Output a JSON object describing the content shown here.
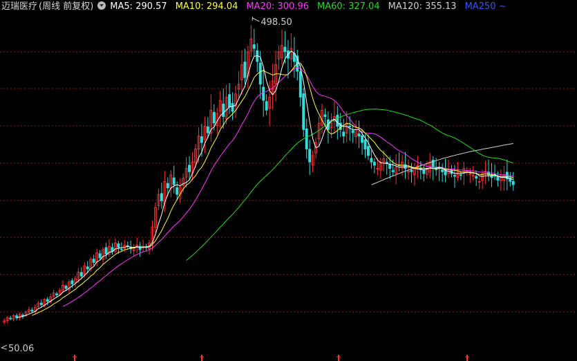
{
  "header": {
    "stock_name": "迈瑞医疗",
    "mode": "(周线 前复权)",
    "ma": [
      {
        "label": "MA5: 290.57",
        "color": "#ffffff"
      },
      {
        "label": "MA10: 294.04",
        "color": "#ffff33"
      },
      {
        "label": "MA20: 300.96",
        "color": "#ff33ff"
      },
      {
        "label": "MA60: 327.04",
        "color": "#22dd22"
      },
      {
        "label": "MA120: 355.13",
        "color": "#d0d0d0"
      },
      {
        "label": "MA250 ~",
        "color": "#3355ff"
      }
    ]
  },
  "chart_data": {
    "type": "candlestick",
    "title": "迈瑞医疗(周线 前复权)",
    "high_label": "498.50",
    "low_label": "50.06",
    "ylim": [
      40,
      520
    ],
    "grid": "horizontal dashed red",
    "up_color": "#ff3333",
    "down_color": "#33dddd",
    "ma_colors": {
      "ma5": "#ffffff",
      "ma10": "#ffff33",
      "ma20": "#ff33ff",
      "ma60": "#22dd22",
      "ma120": "#d0d0d0"
    },
    "year_markers": 4,
    "close_series": [
      55,
      60,
      58,
      63,
      60,
      65,
      62,
      68,
      72,
      70,
      76,
      82,
      80,
      88,
      85,
      92,
      98,
      95,
      102,
      110,
      105,
      115,
      112,
      120,
      130,
      124,
      140,
      135,
      150,
      145,
      160,
      152,
      165,
      158,
      170,
      162,
      175,
      168,
      165,
      172,
      170,
      166,
      168,
      172,
      165,
      170,
      168,
      175,
      200,
      230,
      250,
      240,
      270,
      260,
      280,
      265,
      250,
      262,
      275,
      290,
      285,
      300,
      320,
      340,
      330,
      355,
      345,
      380,
      360,
      375,
      395,
      370,
      400,
      385,
      378,
      405,
      420,
      450,
      430,
      470,
      490,
      475,
      455,
      420,
      395,
      380,
      400,
      425,
      450,
      470,
      480,
      470,
      460,
      475,
      455,
      440,
      400,
      350,
      320,
      300,
      310,
      330,
      360,
      380,
      370,
      350,
      360,
      370,
      355,
      350,
      340,
      360,
      355,
      345,
      350,
      340,
      330,
      320,
      310,
      300,
      295,
      290,
      300,
      305,
      298,
      290,
      285,
      292,
      295,
      300,
      290,
      286,
      285,
      290,
      295,
      288,
      282,
      290,
      300,
      292,
      288,
      290,
      285,
      280,
      286,
      282,
      278,
      285,
      280,
      290,
      286,
      282,
      280,
      275,
      270,
      282,
      286,
      280,
      276,
      278,
      272,
      276,
      280,
      274,
      270,
      265
    ]
  }
}
